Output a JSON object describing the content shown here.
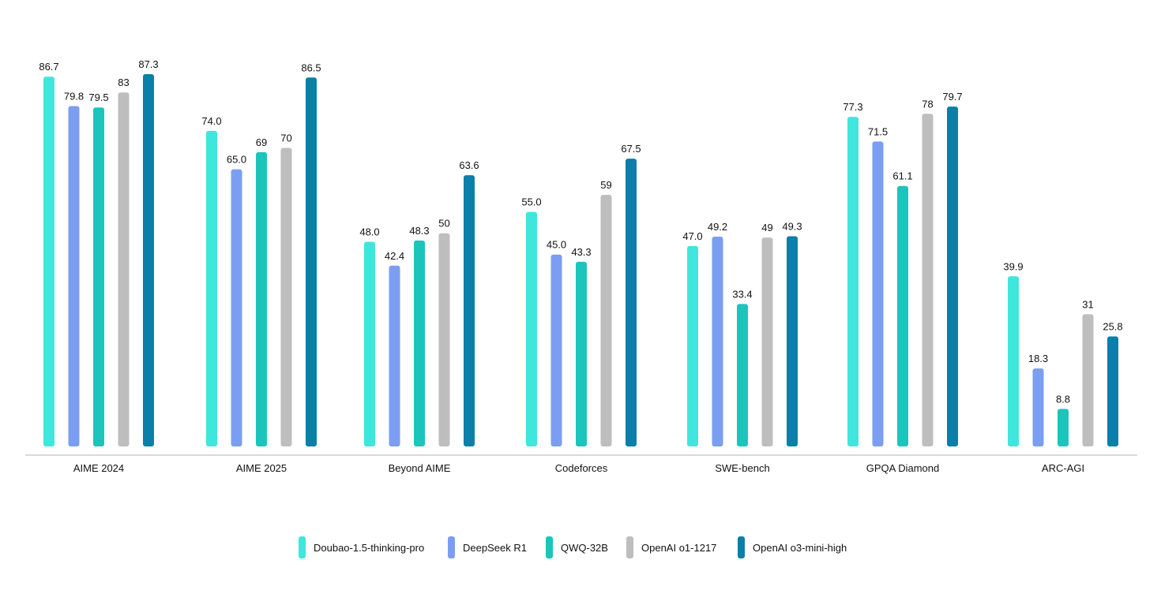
{
  "chart_data": {
    "type": "bar",
    "title": "",
    "xlabel": "",
    "ylabel": "",
    "ylim": [
      0,
      88
    ],
    "grid": false,
    "legend_position": "bottom",
    "categories": [
      "AIME 2024",
      "AIME 2025",
      "Beyond AIME",
      "Codeforces",
      "SWE-bench",
      "GPQA Diamond",
      "ARC-AGI"
    ],
    "series": [
      {
        "name": "Doubao-1.5-thinking-pro",
        "color": "#3FE6DC",
        "values": [
          86.7,
          74.0,
          48.0,
          55.0,
          47.0,
          77.3,
          39.9
        ],
        "labels": [
          "86.7",
          "74.0",
          "48.0",
          "55.0",
          "47.0",
          "77.3",
          "39.9"
        ]
      },
      {
        "name": "DeepSeek R1",
        "color": "#7B9EF2",
        "values": [
          79.8,
          65.0,
          42.4,
          45.0,
          49.2,
          71.5,
          18.3
        ],
        "labels": [
          "79.8",
          "65.0",
          "42.4",
          "45.0",
          "49.2",
          "71.5",
          "18.3"
        ]
      },
      {
        "name": "QWQ-32B",
        "color": "#1CC5BC",
        "values": [
          79.5,
          69,
          48.3,
          43.3,
          33.4,
          61.1,
          8.8
        ],
        "labels": [
          "79.5",
          "69",
          "48.3",
          "43.3",
          "33.4",
          "61.1",
          "8.8"
        ]
      },
      {
        "name": "OpenAI o1-1217",
        "color": "#BEBEBE",
        "values": [
          83,
          70,
          50,
          59,
          49,
          78,
          31
        ],
        "labels": [
          "83",
          "70",
          "50",
          "59",
          "49",
          "78",
          "31"
        ]
      },
      {
        "name": "OpenAI o3-mini-high",
        "color": "#0A7FAA",
        "values": [
          87.3,
          86.5,
          63.6,
          67.5,
          49.3,
          79.7,
          25.8
        ],
        "labels": [
          "87.3",
          "86.5",
          "63.6",
          "67.5",
          "49.3",
          "79.7",
          "25.8"
        ]
      }
    ]
  }
}
